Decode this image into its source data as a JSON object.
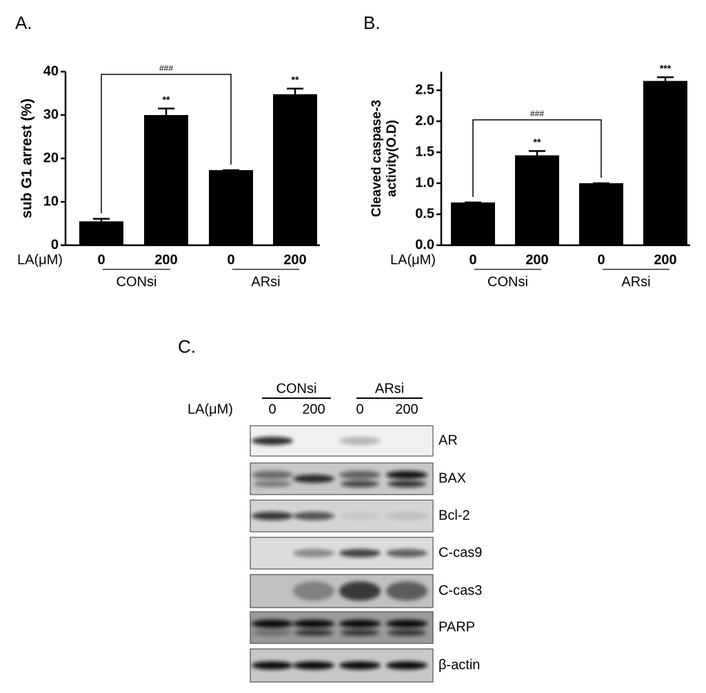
{
  "chart_data": [
    {
      "type": "bar",
      "panel": "A.",
      "y_label": "sub G1 arrest (%)",
      "x_label": "LA(μM)",
      "categories": [
        "0",
        "200",
        "0",
        "200"
      ],
      "groups": [
        "CONsi",
        "ARsi"
      ],
      "values": [
        5.5,
        30,
        17.3,
        34.8
      ],
      "errors": [
        0.6,
        1.5,
        0,
        1.3
      ],
      "color": "#000000",
      "ylim": [
        0,
        40
      ],
      "yticks": [
        0,
        10,
        20,
        30,
        40
      ],
      "bar_annotations": [
        null,
        "**",
        null,
        "**"
      ],
      "bracket_label": "###"
    },
    {
      "type": "bar",
      "panel": "B.",
      "y_label": [
        "Cleaved caspase-3",
        "activity(O.D)"
      ],
      "x_label": "LA(μM)",
      "categories": [
        "0",
        "200",
        "0",
        "200"
      ],
      "groups": [
        "CONsi",
        "ARsi"
      ],
      "values": [
        0.69,
        1.45,
        1.0,
        2.65
      ],
      "errors": [
        0,
        0.07,
        0,
        0.06
      ],
      "color": "#000000",
      "ylim": [
        0,
        2.8
      ],
      "yticks": [
        {
          "value": 0,
          "label": "0.0"
        },
        0.5,
        {
          "value": 1,
          "label": "1.0"
        },
        1.5,
        {
          "value": 2,
          "label": "2.0"
        },
        2.5
      ],
      "bar_annotations": [
        null,
        "**",
        null,
        "***"
      ],
      "bracket_label": "###"
    }
  ],
  "blot": {
    "panel": "C.",
    "x_label": "LA(μM)",
    "groups": [
      "CONsi",
      "ARsi"
    ],
    "lanes": [
      "0",
      "200",
      "0",
      "200"
    ],
    "rows": [
      "AR",
      "BAX",
      "Bcl-2",
      "C-cas9",
      "C-cas3",
      "PARP",
      "β-actin"
    ]
  }
}
